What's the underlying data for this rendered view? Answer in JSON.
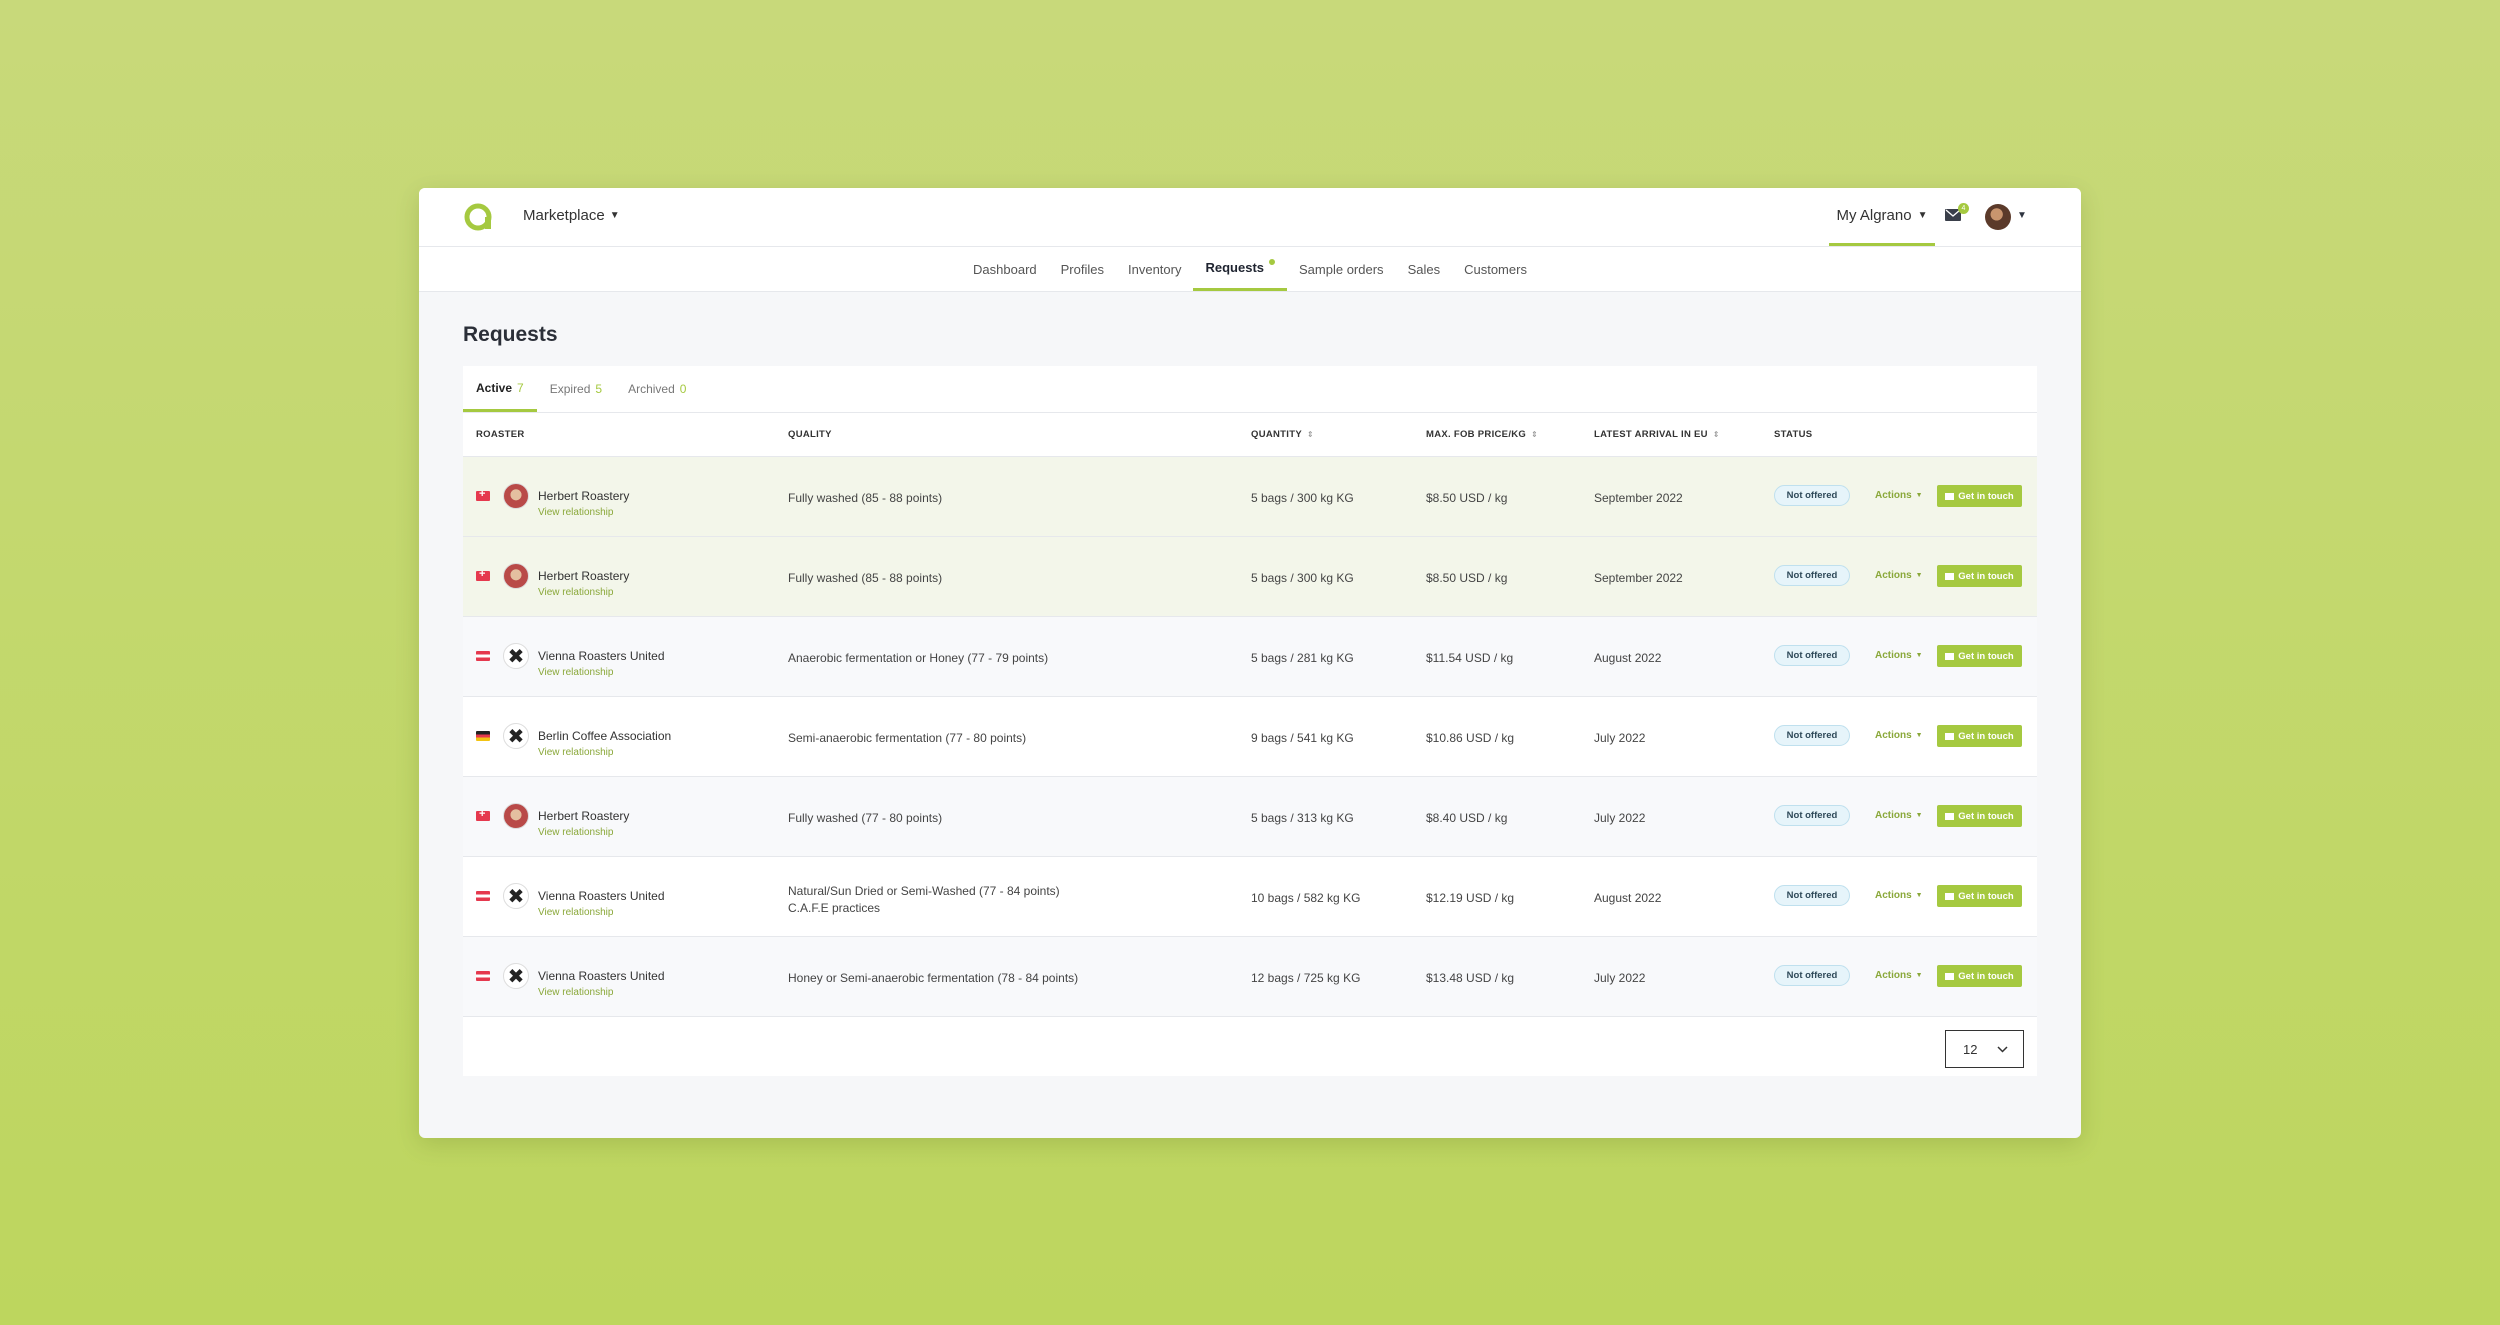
{
  "header": {
    "marketplace_label": "Marketplace",
    "account_label": "My Algrano",
    "mail_badge": "4"
  },
  "nav": [
    {
      "label": "Dashboard",
      "active": false
    },
    {
      "label": "Profiles",
      "active": false
    },
    {
      "label": "Inventory",
      "active": false
    },
    {
      "label": "Requests",
      "active": true
    },
    {
      "label": "Sample orders",
      "active": false
    },
    {
      "label": "Sales",
      "active": false
    },
    {
      "label": "Customers",
      "active": false
    }
  ],
  "page_title": "Requests",
  "tabs": [
    {
      "label": "Active",
      "count": "7"
    },
    {
      "label": "Expired",
      "count": "5"
    },
    {
      "label": "Archived",
      "count": "0"
    }
  ],
  "columns": {
    "roaster": "ROASTER",
    "quality": "QUALITY",
    "quantity": "QUANTITY",
    "price": "MAX. FOB PRICE/KG",
    "arrival": "LATEST ARRIVAL IN EU",
    "status": "STATUS"
  },
  "row_link_label": "View relationship",
  "actions_label": "Actions",
  "contact_label": "Get in touch",
  "rows": [
    {
      "flag": "CH",
      "avatar": "herbert",
      "roaster": "Herbert Roastery",
      "quality": "Fully washed (85 - 88 points)",
      "quality2": "",
      "quantity": "5 bags / 300 kg KG",
      "price": "$8.50 USD / kg",
      "arrival": "September 2022",
      "status": "Not offered"
    },
    {
      "flag": "CH",
      "avatar": "herbert",
      "roaster": "Herbert Roastery",
      "quality": "Fully washed (85 - 88 points)",
      "quality2": "",
      "quantity": "5 bags / 300 kg KG",
      "price": "$8.50 USD / kg",
      "arrival": "September 2022",
      "status": "Not offered"
    },
    {
      "flag": "AT",
      "avatar": "x",
      "roaster": "Vienna Roasters United",
      "quality": "Anaerobic fermentation or Honey (77 - 79 points)",
      "quality2": "",
      "quantity": "5 bags / 281 kg KG",
      "price": "$11.54 USD / kg",
      "arrival": "August 2022",
      "status": "Not offered"
    },
    {
      "flag": "DE",
      "avatar": "x",
      "roaster": "Berlin Coffee Association",
      "quality": "Semi-anaerobic fermentation (77 - 80 points)",
      "quality2": "",
      "quantity": "9 bags / 541 kg KG",
      "price": "$10.86 USD / kg",
      "arrival": "July 2022",
      "status": "Not offered"
    },
    {
      "flag": "CH",
      "avatar": "herbert",
      "roaster": "Herbert Roastery",
      "quality": "Fully washed (77 - 80 points)",
      "quality2": "",
      "quantity": "5 bags / 313 kg KG",
      "price": "$8.40 USD / kg",
      "arrival": "July 2022",
      "status": "Not offered"
    },
    {
      "flag": "AT",
      "avatar": "x",
      "roaster": "Vienna Roasters United",
      "quality": "Natural/Sun Dried or Semi-Washed (77 - 84 points)",
      "quality2": "C.A.F.E practices",
      "quantity": "10 bags / 582 kg KG",
      "price": "$12.19 USD / kg",
      "arrival": "August 2022",
      "status": "Not offered"
    },
    {
      "flag": "AT",
      "avatar": "x",
      "roaster": "Vienna Roasters United",
      "quality": "Honey or Semi-anaerobic fermentation (78 - 84 points)",
      "quality2": "",
      "quantity": "12 bags / 725 kg KG",
      "price": "$13.48 USD / kg",
      "arrival": "July 2022",
      "status": "Not offered"
    }
  ],
  "per_page": "12",
  "colors": {
    "accent": "#a5c940",
    "background": "#bfd76a"
  }
}
